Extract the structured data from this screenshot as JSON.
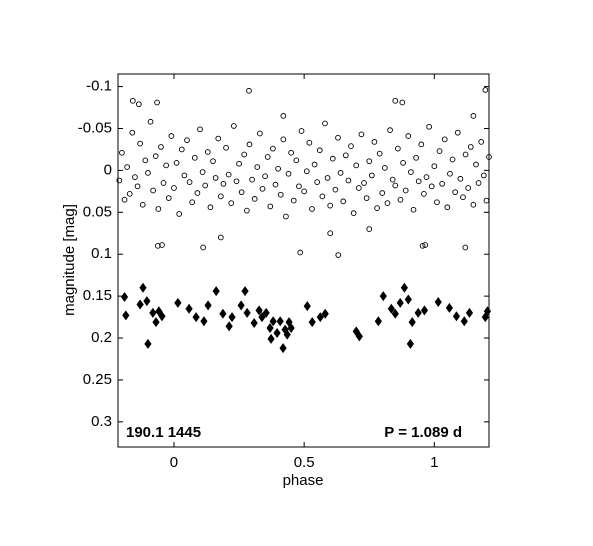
{
  "chart_data": {
    "type": "scatter",
    "x_label": "phase",
    "y_label": "magnitude  [mag]",
    "annotations": [
      "190.1 1445",
      "P = 1.089 d"
    ],
    "xlim": [
      -0.215,
      1.21
    ],
    "xticks": [
      0,
      0.5,
      1
    ],
    "ylim": [
      -0.115,
      0.33
    ],
    "yticks": [
      -0.1,
      -0.05,
      0,
      0.05,
      0.1,
      0.15,
      0.2,
      0.25,
      0.3
    ],
    "y_reversed": true,
    "series": [
      {
        "marker": "open-circle",
        "color": "#000000",
        "x": [
          -0.21,
          -0.2,
          -0.19,
          -0.18,
          -0.17,
          -0.16,
          -0.15,
          -0.14,
          -0.13,
          -0.12,
          -0.11,
          -0.1,
          -0.09,
          -0.08,
          -0.07,
          -0.06,
          -0.05,
          -0.04,
          -0.03,
          -0.02,
          -0.01,
          0,
          0.01,
          0.02,
          0.03,
          0.04,
          0.05,
          0.06,
          0.07,
          0.08,
          0.09,
          0.1,
          0.11,
          0.12,
          0.13,
          0.14,
          0.15,
          0.16,
          0.17,
          0.18,
          0.19,
          0.2,
          0.21,
          0.22,
          0.23,
          0.24,
          0.25,
          0.26,
          0.27,
          0.28,
          0.29,
          0.3,
          0.31,
          0.32,
          0.33,
          0.34,
          0.35,
          0.36,
          0.37,
          0.38,
          0.39,
          0.4,
          0.41,
          0.42,
          0.43,
          0.44,
          0.45,
          0.46,
          0.47,
          0.48,
          0.49,
          0.5,
          0.51,
          0.52,
          0.53,
          0.54,
          0.55,
          0.56,
          0.57,
          0.58,
          0.59,
          0.6,
          0.61,
          0.62,
          0.63,
          0.64,
          0.65,
          0.66,
          0.67,
          0.68,
          0.69,
          0.7,
          0.71,
          0.72,
          0.73,
          0.74,
          0.75,
          0.76,
          0.77,
          0.78,
          0.79,
          0.8,
          0.81,
          0.82,
          0.83,
          0.84,
          0.85,
          0.86,
          0.87,
          0.88,
          0.89,
          0.9,
          0.91,
          0.92,
          0.93,
          0.94,
          0.95,
          0.96,
          0.97,
          0.98,
          0.99,
          1,
          1.01,
          1.02,
          1.03,
          1.04,
          1.05,
          1.06,
          1.07,
          1.08,
          1.09,
          1.1,
          1.11,
          1.12,
          1.13,
          1.14,
          1.15,
          1.16,
          1.17,
          1.18,
          1.19,
          1.2,
          1.21,
          -0.158,
          -0.135,
          -0.065,
          0.288,
          0.485,
          0.631,
          0.85,
          0.877,
          1.196,
          -0.046,
          -0.062,
          0.955,
          0.965,
          1.119,
          0.112,
          0.42,
          0.6,
          0.18,
          0.75,
          1.15
        ],
        "values": [
          0.012,
          -0.021,
          0.035,
          -0.004,
          0.028,
          -0.045,
          0.008,
          0.019,
          -0.032,
          0.041,
          -0.012,
          0.003,
          -0.058,
          0.024,
          -0.017,
          0.046,
          -0.028,
          0.015,
          -0.006,
          0.033,
          -0.041,
          0.021,
          -0.009,
          0.052,
          -0.025,
          0.006,
          -0.036,
          0.014,
          0.038,
          -0.015,
          0.027,
          -0.049,
          0.002,
          0.018,
          -0.022,
          0.044,
          -0.011,
          0.009,
          -0.038,
          0.031,
          0.016,
          -0.027,
          0.005,
          0.039,
          -0.053,
          0.013,
          -0.008,
          0.026,
          -0.019,
          0.048,
          -0.031,
          0.011,
          0.034,
          -0.004,
          -0.044,
          0.022,
          0.007,
          -0.016,
          0.043,
          -0.026,
          0.017,
          -0.002,
          0.029,
          -0.037,
          0.055,
          0.004,
          -0.021,
          0.036,
          -0.012,
          0.019,
          -0.047,
          0.025,
          0.001,
          -0.033,
          0.046,
          -0.007,
          0.014,
          -0.024,
          0.031,
          -0.056,
          0.009,
          0.042,
          -0.014,
          0.023,
          -0.039,
          0.003,
          0.037,
          -0.018,
          0.012,
          -0.029,
          0.051,
          -0.006,
          0.021,
          -0.043,
          0.015,
          0.033,
          -0.011,
          0.006,
          -0.034,
          0.045,
          -0.02,
          0.027,
          -0.003,
          0.039,
          -0.048,
          0.011,
          0.018,
          -0.026,
          0.035,
          -0.009,
          0.024,
          -0.041,
          0.002,
          0.047,
          -0.015,
          0.013,
          -0.031,
          0.028,
          0.008,
          -0.052,
          0.019,
          -0.005,
          0.038,
          -0.023,
          0.016,
          -0.037,
          0.044,
          0.004,
          -0.013,
          0.026,
          -0.045,
          0.01,
          0.032,
          -0.019,
          0.021,
          -0.028,
          0.041,
          -0.007,
          0.015,
          -0.034,
          0.006,
          0.036,
          -0.016,
          -0.083,
          -0.079,
          -0.081,
          -0.095,
          0.098,
          0.101,
          -0.083,
          -0.081,
          -0.096,
          0.089,
          0.09,
          0.09,
          0.089,
          0.092,
          0.092,
          -0.065,
          0.075,
          0.08,
          0.07,
          -0.065
        ]
      },
      {
        "marker": "filled-diamond",
        "color": "#000000",
        "x": [
          -0.19,
          -0.185,
          -0.13,
          -0.119,
          -0.104,
          -0.1,
          -0.081,
          -0.069,
          -0.058,
          -0.046,
          0.015,
          0.058,
          0.085,
          0.115,
          0.131,
          0.162,
          0.188,
          0.212,
          0.223,
          0.258,
          0.273,
          0.281,
          0.308,
          0.327,
          0.338,
          0.354,
          0.369,
          0.373,
          0.381,
          0.396,
          0.408,
          0.419,
          0.427,
          0.435,
          0.442,
          0.45,
          0.512,
          0.531,
          0.562,
          0.581,
          0.7,
          0.712,
          0.785,
          0.804,
          0.835,
          0.85,
          0.869,
          0.885,
          0.9,
          0.908,
          0.915,
          0.938,
          0.962,
          1.015,
          1.058,
          1.085,
          1.115,
          1.135,
          1.196,
          1.204
        ],
        "values": [
          0.151,
          0.173,
          0.16,
          0.14,
          0.156,
          0.207,
          0.17,
          0.181,
          0.168,
          0.174,
          0.158,
          0.165,
          0.175,
          0.18,
          0.161,
          0.144,
          0.171,
          0.186,
          0.175,
          0.161,
          0.144,
          0.17,
          0.182,
          0.167,
          0.175,
          0.17,
          0.188,
          0.201,
          0.18,
          0.194,
          0.18,
          0.212,
          0.19,
          0.196,
          0.181,
          0.188,
          0.162,
          0.181,
          0.175,
          0.171,
          0.192,
          0.198,
          0.18,
          0.15,
          0.165,
          0.171,
          0.158,
          0.14,
          0.154,
          0.207,
          0.181,
          0.17,
          0.167,
          0.157,
          0.164,
          0.174,
          0.18,
          0.17,
          0.175,
          0.168
        ]
      }
    ]
  }
}
